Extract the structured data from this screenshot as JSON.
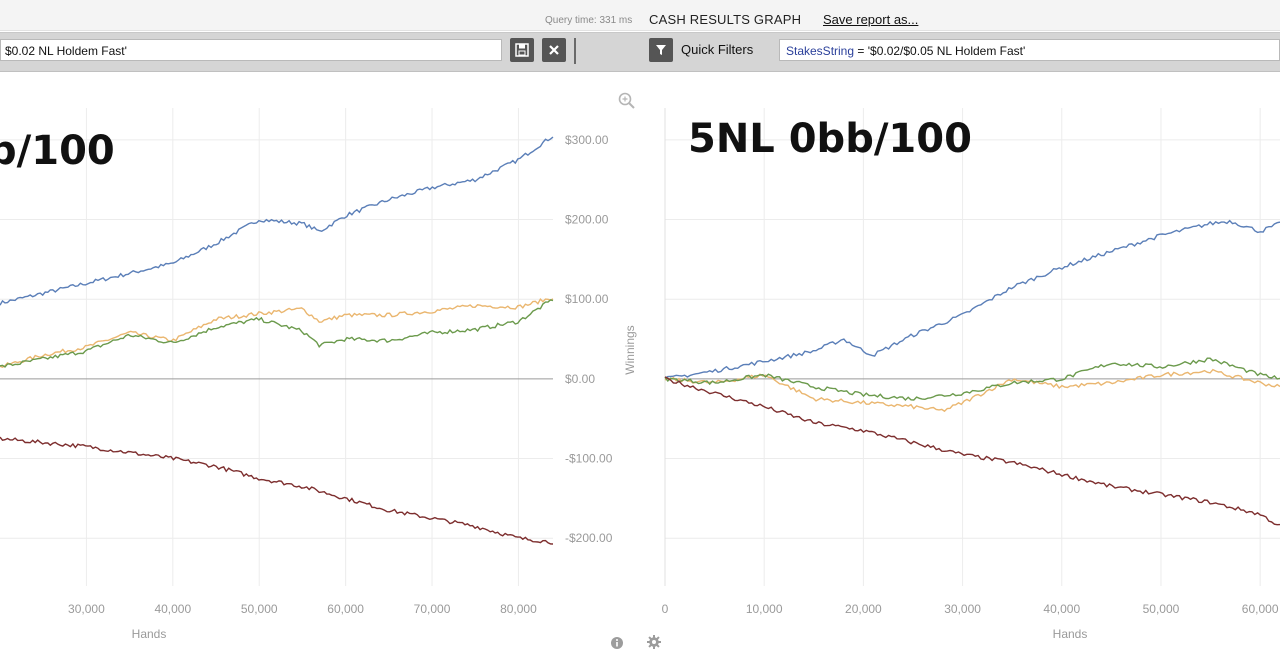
{
  "header": {
    "query_time": "Query time: 331 ms",
    "title": "CASH RESULTS GRAPH",
    "save_label": "Save report as..."
  },
  "filters": {
    "left_value": "$0.02 NL Holdem Fast'",
    "quick_filters_label": "Quick Filters",
    "right_prefix": "StakesString",
    "right_value": "= '$0.02/$0.05 NL Holdem Fast'"
  },
  "icons": {
    "save": "save-icon",
    "clear": "close-icon",
    "filter": "funnel-icon",
    "zoom": "magnifier-icon",
    "info": "info-icon",
    "settings": "gear-icon"
  },
  "colors": {
    "blue": "#5b7fb8",
    "orange": "#eab66f",
    "green": "#6b9a4c",
    "red": "#7d2e2e",
    "zero_line": "#9a9a9a",
    "grid": "#ececec"
  },
  "chart_data": [
    {
      "type": "line",
      "overlay_text": "b/100",
      "xlabel": "Hands",
      "ylabel": "Winnings",
      "xlim": [
        20000,
        84000
      ],
      "ylim": [
        -260,
        340
      ],
      "x_ticks": [
        30000,
        40000,
        50000,
        60000,
        70000,
        80000
      ],
      "x_tick_labels": [
        "30,000",
        "40,000",
        "50,000",
        "60,000",
        "70,000",
        "80,000"
      ],
      "y_ticks": [
        300,
        200,
        100,
        0,
        -100,
        -200
      ],
      "y_tick_labels": [
        "$300.00",
        "$200.00",
        "$100.00",
        "$0.00",
        "-$100.00",
        "-$200.00"
      ],
      "series": [
        {
          "color": "#5b7fb8",
          "x": [
            20000,
            30000,
            40000,
            45000,
            50000,
            55000,
            57000,
            60000,
            65000,
            70000,
            75000,
            80000,
            84000
          ],
          "values": [
            95,
            120,
            145,
            170,
            200,
            195,
            185,
            205,
            225,
            240,
            250,
            275,
            305
          ]
        },
        {
          "color": "#eab66f",
          "x": [
            20000,
            25000,
            30000,
            35000,
            40000,
            45000,
            50000,
            55000,
            57000,
            60000,
            65000,
            70000,
            75000,
            80000,
            84000
          ],
          "values": [
            15,
            30,
            40,
            58,
            48,
            75,
            82,
            88,
            72,
            80,
            80,
            85,
            92,
            90,
            102
          ]
        },
        {
          "color": "#6b9a4c",
          "x": [
            20000,
            25000,
            30000,
            35000,
            40000,
            45000,
            50000,
            55000,
            57000,
            60000,
            65000,
            70000,
            75000,
            80000,
            84000
          ],
          "values": [
            15,
            25,
            35,
            55,
            45,
            65,
            75,
            60,
            42,
            50,
            48,
            58,
            62,
            72,
            100
          ]
        },
        {
          "color": "#7d2e2e",
          "x": [
            20000,
            30000,
            40000,
            45000,
            50000,
            55000,
            60000,
            65000,
            70000,
            75000,
            80000,
            84000
          ],
          "values": [
            -75,
            -85,
            -100,
            -110,
            -125,
            -135,
            -150,
            -165,
            -175,
            -185,
            -200,
            -205
          ]
        }
      ]
    },
    {
      "type": "line",
      "overlay_text": "5NL 0bb/100",
      "xlabel": "Hands",
      "xlim": [
        0,
        62000
      ],
      "ylim": [
        -260,
        340
      ],
      "x_ticks": [
        0,
        10000,
        20000,
        30000,
        40000,
        50000,
        60000
      ],
      "x_tick_labels": [
        "0",
        "10,000",
        "20,000",
        "30,000",
        "40,000",
        "50,000",
        "60,000"
      ],
      "series": [
        {
          "color": "#5b7fb8",
          "x": [
            0,
            5000,
            10000,
            15000,
            18000,
            20000,
            21000,
            25000,
            30000,
            35000,
            40000,
            45000,
            50000,
            55000,
            57000,
            60000,
            62000
          ],
          "values": [
            0,
            10,
            22,
            35,
            50,
            35,
            30,
            55,
            80,
            115,
            140,
            160,
            180,
            195,
            198,
            185,
            195
          ]
        },
        {
          "color": "#eab66f",
          "x": [
            0,
            5000,
            10000,
            15000,
            20000,
            25000,
            28000,
            30000,
            35000,
            40000,
            45000,
            50000,
            55000,
            60000,
            62000
          ],
          "values": [
            0,
            -5,
            5,
            -25,
            -30,
            -35,
            -40,
            -30,
            0,
            -10,
            -5,
            5,
            10,
            -5,
            -10
          ]
        },
        {
          "color": "#6b9a4c",
          "x": [
            0,
            5000,
            10000,
            15000,
            20000,
            25000,
            30000,
            35000,
            40000,
            45000,
            50000,
            55000,
            60000,
            62000
          ],
          "values": [
            0,
            -5,
            5,
            -10,
            -20,
            -25,
            -18,
            -5,
            0,
            20,
            15,
            25,
            5,
            0
          ]
        },
        {
          "color": "#7d2e2e",
          "x": [
            0,
            5000,
            10000,
            15000,
            20000,
            25000,
            30000,
            35000,
            40000,
            45000,
            50000,
            55000,
            60000,
            62000
          ],
          "values": [
            0,
            -18,
            -35,
            -55,
            -65,
            -80,
            -95,
            -105,
            -120,
            -135,
            -145,
            -155,
            -170,
            -185
          ]
        }
      ],
      "reference_line": 0
    }
  ]
}
